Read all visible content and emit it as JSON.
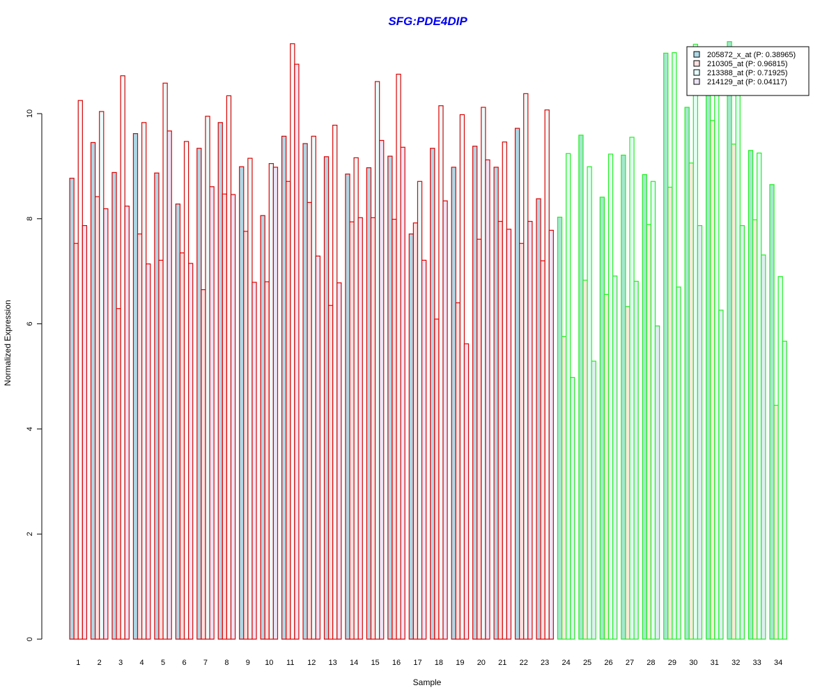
{
  "chart_data": {
    "type": "bar",
    "title": "SFG:PDE4DIP",
    "xlabel": "Sample",
    "ylabel": "Normalized Expression",
    "ylim": [
      0,
      11.4
    ],
    "yticks": [
      0,
      2,
      4,
      6,
      8,
      10
    ],
    "legend_position": "top-right",
    "categories": [
      "1",
      "2",
      "3",
      "4",
      "5",
      "6",
      "7",
      "8",
      "9",
      "10",
      "11",
      "12",
      "13",
      "14",
      "15",
      "16",
      "17",
      "18",
      "19",
      "20",
      "21",
      "22",
      "23",
      "24",
      "25",
      "26",
      "27",
      "28",
      "29",
      "30",
      "31",
      "32",
      "33",
      "34"
    ],
    "group_of_sample": [
      "A",
      "A",
      "A",
      "A",
      "A",
      "A",
      "A",
      "A",
      "A",
      "A",
      "A",
      "A",
      "A",
      "A",
      "A",
      "A",
      "A",
      "A",
      "A",
      "A",
      "A",
      "A",
      "A",
      "B",
      "B",
      "B",
      "B",
      "B",
      "B",
      "B",
      "B",
      "B",
      "B",
      "B"
    ],
    "group_border_colors": {
      "A": "#dd0000",
      "B": "#22ee22"
    },
    "series": [
      {
        "name": "205872_x_at (P: 0.38965)",
        "fill": "#add8e6",
        "fill_b": "#a6e6d0",
        "values": [
          8.77,
          9.45,
          8.88,
          9.62,
          8.87,
          8.28,
          9.34,
          9.83,
          8.99,
          8.06,
          9.57,
          9.43,
          9.18,
          8.85,
          8.97,
          9.19,
          7.71,
          9.34,
          8.98,
          9.38,
          8.98,
          9.72,
          8.38,
          8.03,
          9.59,
          8.41,
          9.21,
          8.84,
          11.15,
          10.12,
          11.2,
          11.37,
          9.3,
          8.65
        ]
      },
      {
        "name": "210305_at (P: 0.96815)",
        "fill": "#ffe0e0",
        "fill_b": "#fbe8dc",
        "values": [
          7.53,
          8.42,
          6.29,
          7.71,
          7.21,
          7.35,
          6.65,
          8.47,
          7.76,
          6.8,
          8.71,
          8.31,
          6.35,
          7.94,
          8.02,
          7.99,
          7.92,
          6.09,
          6.4,
          7.61,
          7.95,
          7.53,
          7.2,
          5.76,
          6.83,
          6.56,
          6.33,
          7.89,
          8.6,
          9.06,
          9.87,
          9.42,
          7.98,
          4.45
        ]
      },
      {
        "name": "213388_at (P: 0.71925)",
        "fill": "#e8ffff",
        "fill_b": "#e4fff4",
        "values": [
          10.25,
          10.04,
          10.72,
          9.83,
          10.58,
          9.47,
          9.95,
          10.34,
          9.15,
          9.05,
          11.33,
          9.57,
          9.78,
          9.16,
          10.61,
          10.75,
          8.71,
          10.15,
          9.98,
          10.12,
          9.46,
          10.38,
          10.07,
          9.24,
          8.99,
          9.23,
          9.55,
          8.71,
          11.16,
          11.32,
          11.1,
          11.0,
          9.25,
          6.9
        ]
      },
      {
        "name": "214129_at (P: 0.04117)",
        "fill": "#ece4f6",
        "fill_b": "#e2ecf4",
        "values": [
          7.87,
          8.19,
          8.24,
          7.14,
          9.67,
          7.15,
          8.61,
          8.46,
          6.79,
          8.98,
          10.94,
          7.29,
          6.78,
          8.02,
          9.49,
          9.36,
          7.21,
          8.34,
          5.62,
          9.12,
          7.8,
          7.95,
          7.78,
          4.98,
          5.29,
          6.91,
          6.81,
          5.96,
          6.7,
          7.87,
          6.26,
          7.87,
          7.31,
          5.67
        ]
      }
    ]
  }
}
